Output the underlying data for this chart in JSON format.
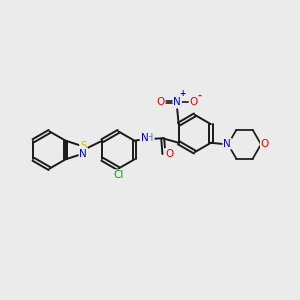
{
  "background_color": "#ebebeb",
  "bond_color": "#1a1a1a",
  "atom_colors": {
    "N": "#0000ee",
    "O": "#ee0000",
    "S": "#bbbb00",
    "Cl": "#00aa00",
    "NH": "#448888",
    "C": "#1a1a1a"
  },
  "lw": 1.4,
  "dbo": 0.055,
  "ring_r": 0.62
}
